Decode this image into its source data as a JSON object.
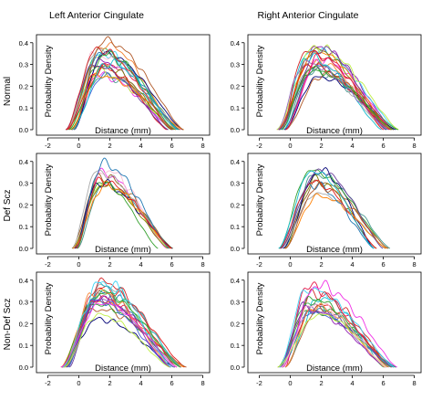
{
  "chart_data": {
    "type": "line",
    "column_titles": [
      "Left Anterior Cingulate",
      "Right Anterior Cingulate"
    ],
    "row_labels": [
      "Normal",
      "Def Scz",
      "Non-Def Scz"
    ],
    "xlabel": "Distance (mm)",
    "ylabel": "Probability Density",
    "xlim": [
      -2.5,
      8.2
    ],
    "ylim": [
      0,
      0.42
    ],
    "xticks": [
      -2,
      0,
      2,
      4,
      6,
      8
    ],
    "yticks": [
      0.0,
      0.1,
      0.2,
      0.3,
      0.4
    ],
    "ytick_labels": [
      "0.0",
      "0.1",
      "0.2",
      "0.3",
      "0.4"
    ],
    "grid": false,
    "legend": "none",
    "palette": [
      "#e6194b",
      "#3cb44b",
      "#4363d8",
      "#f58231",
      "#911eb4",
      "#42d4f4",
      "#f032e6",
      "#bfef45",
      "#fabed4",
      "#469990",
      "#9a6324",
      "#808000",
      "#000075",
      "#a9a9a9",
      "#ff7f00",
      "#1f78b4",
      "#33a02c",
      "#e31a1c",
      "#6a3d9a",
      "#b15928",
      "#17becf",
      "#d62728",
      "#2ca02c",
      "#9467bd"
    ],
    "panels": [
      {
        "row": 0,
        "col": 0,
        "count": 22,
        "support": [
          -0.6,
          6.8
        ],
        "peak": [
          0.24,
          0.41
        ],
        "mode": [
          0.9,
          2.0
        ]
      },
      {
        "row": 0,
        "col": 1,
        "count": 22,
        "support": [
          -0.6,
          7.0
        ],
        "peak": [
          0.24,
          0.38
        ],
        "mode": [
          0.9,
          2.2
        ]
      },
      {
        "row": 1,
        "col": 0,
        "count": 12,
        "support": [
          -0.3,
          6.2
        ],
        "peak": [
          0.26,
          0.39
        ],
        "mode": [
          0.9,
          1.7
        ]
      },
      {
        "row": 1,
        "col": 1,
        "count": 12,
        "support": [
          -0.6,
          6.5
        ],
        "peak": [
          0.24,
          0.36
        ],
        "mode": [
          0.9,
          2.0
        ]
      },
      {
        "row": 2,
        "col": 0,
        "count": 20,
        "support": [
          -0.9,
          7.0
        ],
        "peak": [
          0.22,
          0.4
        ],
        "mode": [
          0.9,
          1.5
        ]
      },
      {
        "row": 2,
        "col": 1,
        "count": 18,
        "support": [
          -0.6,
          7.2
        ],
        "peak": [
          0.24,
          0.38
        ],
        "mode": [
          0.9,
          2.0
        ]
      }
    ]
  }
}
